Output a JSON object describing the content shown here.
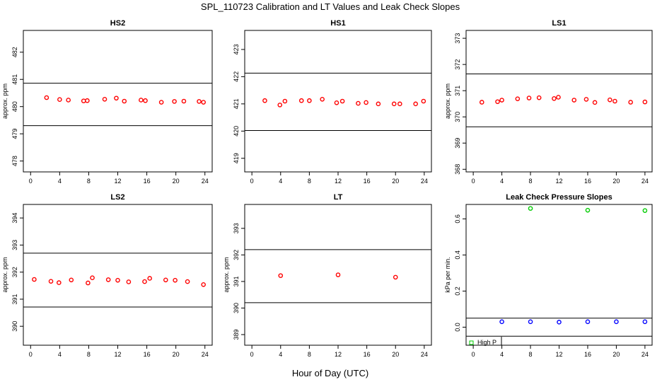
{
  "title": "SPL_110723  Calibration and LT Values and Leak Check Slopes",
  "xlabel": "Hour of Day (UTC)",
  "colors": {
    "point": "#ff0000",
    "high": "#00cc00",
    "low": "#0000ff",
    "line": "#000000"
  },
  "chart_data": [
    {
      "type": "scatter",
      "title": "HS2",
      "ylabel": "approx. ppm",
      "xlim": [
        -1,
        25
      ],
      "ylim": [
        477.6,
        482.8
      ],
      "xticks": [
        0,
        4,
        8,
        12,
        16,
        20,
        24
      ],
      "yticks": [
        478,
        479,
        480,
        481,
        482
      ],
      "hlines": [
        480.86,
        479.3
      ],
      "series": [
        {
          "x": [
            2.2,
            4,
            5.2,
            7.3,
            7.8,
            10.2,
            11.8,
            12.9,
            15.2,
            15.8,
            18,
            19.8,
            21.1,
            23.2,
            23.8
          ],
          "y": [
            480.33,
            480.26,
            480.24,
            480.21,
            480.22,
            480.27,
            480.31,
            480.2,
            480.24,
            480.22,
            480.16,
            480.19,
            480.2,
            480.19,
            480.16
          ]
        }
      ]
    },
    {
      "type": "scatter",
      "title": "HS1",
      "ylabel": "",
      "xlim": [
        -1,
        25
      ],
      "ylim": [
        418.5,
        423.7
      ],
      "xticks": [
        0,
        4,
        8,
        12,
        16,
        20,
        24
      ],
      "yticks": [
        419,
        420,
        421,
        422,
        423
      ],
      "hlines": [
        422.13,
        420.02
      ],
      "series": [
        {
          "x": [
            1.8,
            3.9,
            4.6,
            6.9,
            8,
            9.8,
            11.8,
            12.6,
            14.8,
            15.9,
            17.6,
            19.8,
            20.6,
            22.8,
            23.9
          ],
          "y": [
            421.12,
            420.96,
            421.1,
            421.12,
            421.12,
            421.17,
            421.04,
            421.1,
            421.02,
            421.05,
            421.0,
            421.0,
            421.0,
            421.0,
            421.1
          ]
        }
      ]
    },
    {
      "type": "scatter",
      "title": "LS1",
      "ylabel": "approx. ppm",
      "xlim": [
        -1,
        25
      ],
      "ylim": [
        367.9,
        373.3
      ],
      "xticks": [
        0,
        4,
        8,
        12,
        16,
        20,
        24
      ],
      "yticks": [
        368,
        369,
        370,
        371,
        372,
        373
      ],
      "hlines": [
        371.64,
        369.62
      ],
      "series": [
        {
          "x": [
            1.2,
            3.4,
            4,
            6.2,
            7.8,
            9.2,
            11.3,
            11.9,
            14.1,
            15.8,
            17,
            19.1,
            19.8,
            22,
            24
          ],
          "y": [
            370.56,
            370.58,
            370.64,
            370.69,
            370.72,
            370.73,
            370.7,
            370.75,
            370.64,
            370.67,
            370.55,
            370.65,
            370.6,
            370.56,
            370.57
          ]
        }
      ]
    },
    {
      "type": "scatter",
      "title": "LS2",
      "ylabel": "approx. ppm",
      "xlim": [
        -1,
        25
      ],
      "ylim": [
        389.3,
        394.5
      ],
      "xticks": [
        0,
        4,
        8,
        12,
        16,
        20,
        24
      ],
      "yticks": [
        390,
        391,
        392,
        393,
        394
      ],
      "hlines": [
        392.7,
        390.71
      ],
      "series": [
        {
          "x": [
            0.5,
            2.8,
            3.9,
            5.6,
            7.9,
            8.5,
            10.7,
            12,
            13.5,
            15.7,
            16.4,
            18.6,
            19.9,
            21.6,
            23.8
          ],
          "y": [
            391.73,
            391.66,
            391.61,
            391.71,
            391.6,
            391.79,
            391.72,
            391.7,
            391.64,
            391.65,
            391.77,
            391.71,
            391.7,
            391.65,
            391.54
          ]
        }
      ]
    },
    {
      "type": "scatter",
      "title": "LT",
      "ylabel": "approx. ppm",
      "xlim": [
        -1,
        25
      ],
      "ylim": [
        388.6,
        393.9
      ],
      "xticks": [
        0,
        4,
        8,
        12,
        16,
        20,
        24
      ],
      "yticks": [
        389,
        390,
        391,
        392,
        393
      ],
      "hlines": [
        392.2,
        390.2
      ],
      "series": [
        {
          "x": [
            4,
            12,
            20
          ],
          "y": [
            391.22,
            391.25,
            391.16
          ]
        }
      ]
    },
    {
      "type": "scatter",
      "title": "Leak Check Pressure Slopes",
      "ylabel": "kPa per min.",
      "xlim": [
        -1,
        25
      ],
      "ylim": [
        -0.1,
        0.68
      ],
      "xticks": [
        0,
        4,
        8,
        12,
        16,
        20,
        24
      ],
      "yticks": [
        0.0,
        0.2,
        0.4,
        0.6
      ],
      "hlines": [
        0.05,
        -0.05
      ],
      "series": [
        {
          "name": "High P",
          "color": "high",
          "x": [
            8,
            16,
            24
          ],
          "y": [
            0.658,
            0.648,
            0.646
          ]
        },
        {
          "color": "low",
          "x": [
            4,
            8,
            12,
            16,
            20,
            24
          ],
          "y": [
            0.03,
            0.03,
            0.028,
            0.03,
            0.03,
            0.03
          ]
        }
      ],
      "legend": "bottom-left"
    }
  ]
}
